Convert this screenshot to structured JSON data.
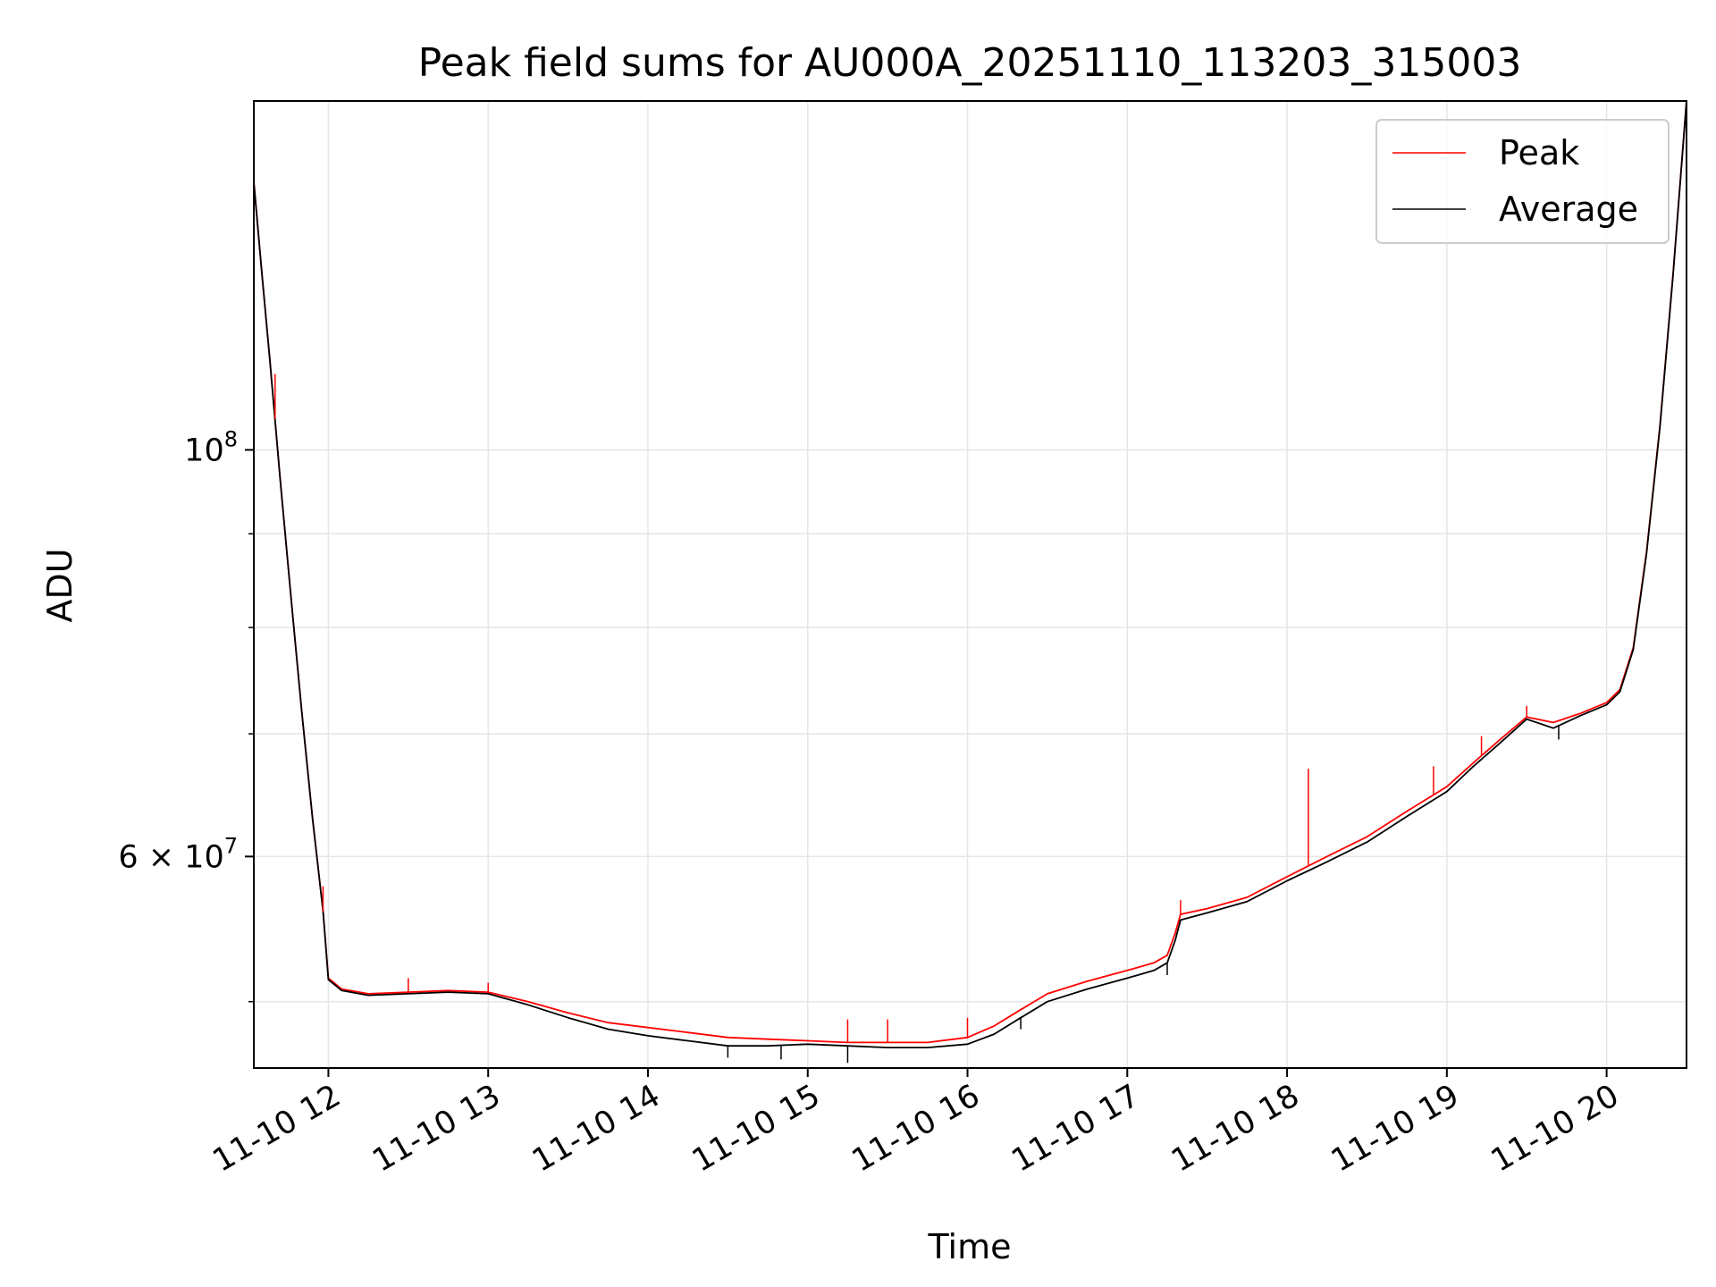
{
  "chart_data": {
    "type": "line",
    "title": "Peak field sums for AU000A_20251110_113203_315003",
    "xlabel": "Time",
    "ylabel": "ADU",
    "y_scale": "log",
    "grid": true,
    "legend_position": "top-right",
    "x_range": [
      "11-10 11:32",
      "11-10 20:30"
    ],
    "y_range": [
      46000000,
      155000000
    ],
    "x_ticks": [
      "11-10 12",
      "11-10 13",
      "11-10 14",
      "11-10 15",
      "11-10 16",
      "11-10 17",
      "11-10 18",
      "11-10 19",
      "11-10 20"
    ],
    "y_ticks": [
      {
        "value": 100000000,
        "base": "10",
        "exp": "8",
        "coef": ""
      },
      {
        "value": 60000000,
        "base": "10",
        "exp": "7",
        "coef": "6"
      }
    ],
    "series": [
      {
        "name": "Peak",
        "color": "#ff0000",
        "points": [
          [
            "11-10 11:32",
            140000000
          ],
          [
            "11-10 11:35",
            125000000
          ],
          [
            "11-10 11:38",
            112000000
          ],
          [
            "11-10 11:42",
            96000000
          ],
          [
            "11-10 11:46",
            83000000
          ],
          [
            "11-10 11:50",
            72000000
          ],
          [
            "11-10 11:54",
            63000000
          ],
          [
            "11-10 11:58",
            56000000
          ],
          [
            "11-10 12:00",
            51500000
          ],
          [
            "11-10 12:05",
            50800000
          ],
          [
            "11-10 12:15",
            50500000
          ],
          [
            "11-10 12:30",
            50600000
          ],
          [
            "11-10 12:45",
            50700000
          ],
          [
            "11-10 13:00",
            50600000
          ],
          [
            "11-10 13:15",
            50000000
          ],
          [
            "11-10 13:30",
            49300000
          ],
          [
            "11-10 13:45",
            48700000
          ],
          [
            "11-10 14:00",
            48400000
          ],
          [
            "11-10 14:15",
            48100000
          ],
          [
            "11-10 14:30",
            47800000
          ],
          [
            "11-10 14:45",
            47700000
          ],
          [
            "11-10 15:00",
            47600000
          ],
          [
            "11-10 15:15",
            47500000
          ],
          [
            "11-10 15:30",
            47500000
          ],
          [
            "11-10 15:45",
            47500000
          ],
          [
            "11-10 16:00",
            47800000
          ],
          [
            "11-10 16:10",
            48500000
          ],
          [
            "11-10 16:20",
            49500000
          ],
          [
            "11-10 16:30",
            50500000
          ],
          [
            "11-10 16:45",
            51300000
          ],
          [
            "11-10 17:00",
            52000000
          ],
          [
            "11-10 17:10",
            52500000
          ],
          [
            "11-10 17:15",
            53000000
          ],
          [
            "11-10 17:18",
            54500000
          ],
          [
            "11-10 17:20",
            55800000
          ],
          [
            "11-10 17:30",
            56200000
          ],
          [
            "11-10 17:45",
            57000000
          ],
          [
            "11-10 18:00",
            58500000
          ],
          [
            "11-10 18:15",
            60000000
          ],
          [
            "11-10 18:30",
            61500000
          ],
          [
            "11-10 18:45",
            63500000
          ],
          [
            "11-10 19:00",
            65500000
          ],
          [
            "11-10 19:10",
            67500000
          ],
          [
            "11-10 19:20",
            69500000
          ],
          [
            "11-10 19:30",
            71500000
          ],
          [
            "11-10 19:40",
            71000000
          ],
          [
            "11-10 19:50",
            71800000
          ],
          [
            "11-10 20:00",
            72800000
          ],
          [
            "11-10 20:05",
            74000000
          ],
          [
            "11-10 20:10",
            78000000
          ],
          [
            "11-10 20:15",
            88000000
          ],
          [
            "11-10 20:20",
            103000000
          ],
          [
            "11-10 20:25",
            125000000
          ],
          [
            "11-10 20:30",
            155000000
          ]
        ],
        "spikes": [
          [
            "11-10 18:08",
            67000000
          ],
          [
            "11-10 16:00",
            49000000
          ],
          [
            "11-10 15:30",
            48900000
          ],
          [
            "11-10 15:15",
            48900000
          ],
          [
            "11-10 12:30",
            51500000
          ],
          [
            "11-10 13:00",
            51200000
          ],
          [
            "11-10 19:30",
            72500000
          ],
          [
            "11-10 19:13",
            69800000
          ],
          [
            "11-10 18:55",
            67200000
          ],
          [
            "11-10 17:20",
            56800000
          ],
          [
            "11-10 11:58",
            57800000
          ],
          [
            "11-10 11:40",
            110000000
          ]
        ]
      },
      {
        "name": "Average",
        "color": "#000000",
        "points": [
          [
            "11-10 11:32",
            140000000
          ],
          [
            "11-10 11:35",
            125000000
          ],
          [
            "11-10 11:38",
            112000000
          ],
          [
            "11-10 11:42",
            96000000
          ],
          [
            "11-10 11:46",
            83000000
          ],
          [
            "11-10 11:50",
            72000000
          ],
          [
            "11-10 11:54",
            63000000
          ],
          [
            "11-10 11:58",
            56000000
          ],
          [
            "11-10 12:00",
            51400000
          ],
          [
            "11-10 12:05",
            50700000
          ],
          [
            "11-10 12:15",
            50400000
          ],
          [
            "11-10 12:30",
            50500000
          ],
          [
            "11-10 12:45",
            50600000
          ],
          [
            "11-10 13:00",
            50500000
          ],
          [
            "11-10 13:15",
            49800000
          ],
          [
            "11-10 13:30",
            49000000
          ],
          [
            "11-10 13:45",
            48300000
          ],
          [
            "11-10 14:00",
            47900000
          ],
          [
            "11-10 14:15",
            47600000
          ],
          [
            "11-10 14:30",
            47300000
          ],
          [
            "11-10 14:45",
            47300000
          ],
          [
            "11-10 15:00",
            47400000
          ],
          [
            "11-10 15:15",
            47300000
          ],
          [
            "11-10 15:30",
            47200000
          ],
          [
            "11-10 15:45",
            47200000
          ],
          [
            "11-10 16:00",
            47400000
          ],
          [
            "11-10 16:10",
            48000000
          ],
          [
            "11-10 16:20",
            49000000
          ],
          [
            "11-10 16:30",
            50000000
          ],
          [
            "11-10 16:45",
            50800000
          ],
          [
            "11-10 17:00",
            51500000
          ],
          [
            "11-10 17:10",
            52000000
          ],
          [
            "11-10 17:15",
            52500000
          ],
          [
            "11-10 17:18",
            54000000
          ],
          [
            "11-10 17:20",
            55400000
          ],
          [
            "11-10 17:30",
            55900000
          ],
          [
            "11-10 17:45",
            56700000
          ],
          [
            "11-10 18:00",
            58200000
          ],
          [
            "11-10 18:15",
            59600000
          ],
          [
            "11-10 18:30",
            61100000
          ],
          [
            "11-10 18:45",
            63100000
          ],
          [
            "11-10 19:00",
            65100000
          ],
          [
            "11-10 19:10",
            67200000
          ],
          [
            "11-10 19:20",
            69200000
          ],
          [
            "11-10 19:30",
            71300000
          ],
          [
            "11-10 19:40",
            70500000
          ],
          [
            "11-10 19:50",
            71600000
          ],
          [
            "11-10 20:00",
            72600000
          ],
          [
            "11-10 20:05",
            73800000
          ],
          [
            "11-10 20:10",
            77800000
          ],
          [
            "11-10 20:15",
            87800000
          ],
          [
            "11-10 20:20",
            102800000
          ],
          [
            "11-10 20:25",
            124800000
          ],
          [
            "11-10 20:30",
            155000000
          ]
        ],
        "dips": [
          [
            "11-10 15:15",
            46300000
          ],
          [
            "11-10 14:30",
            46600000
          ],
          [
            "11-10 14:50",
            46500000
          ],
          [
            "11-10 19:42",
            69500000
          ],
          [
            "11-10 17:15",
            51700000
          ],
          [
            "11-10 16:20",
            48300000
          ]
        ]
      }
    ]
  }
}
